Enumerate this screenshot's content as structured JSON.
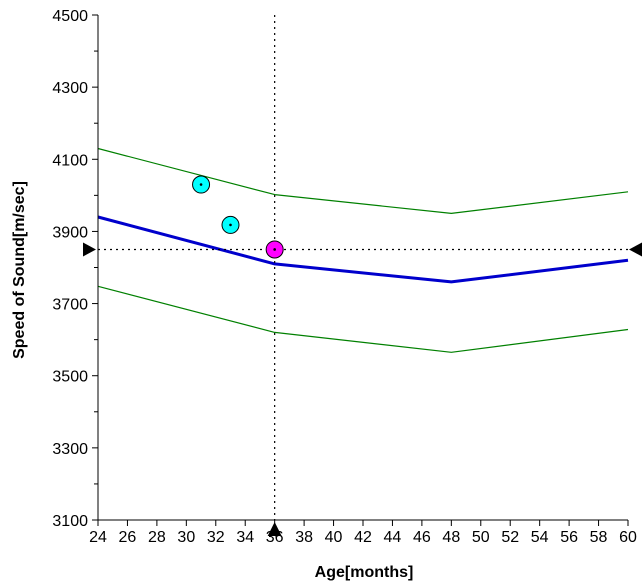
{
  "chart_data": {
    "type": "line",
    "xlabel": "Age[months]",
    "ylabel": "Speed of Sound[m/sec]",
    "xlim": [
      24,
      60
    ],
    "ylim": [
      3100,
      4500
    ],
    "x_ticks": [
      24,
      26,
      28,
      30,
      32,
      34,
      36,
      38,
      40,
      42,
      44,
      46,
      48,
      50,
      52,
      54,
      56,
      58,
      60
    ],
    "y_ticks": [
      3100,
      3300,
      3500,
      3700,
      3900,
      4100,
      4300,
      4500
    ],
    "grid": false,
    "legend": "none",
    "series": [
      {
        "role": "upper",
        "color": "#008000",
        "points": [
          [
            24,
            4130
          ],
          [
            36,
            4002
          ],
          [
            48,
            3950
          ],
          [
            60,
            4010
          ]
        ]
      },
      {
        "role": "mean",
        "color": "#0000cc",
        "points": [
          [
            24,
            3940
          ],
          [
            36,
            3810
          ],
          [
            48,
            3760
          ],
          [
            60,
            3820
          ]
        ]
      },
      {
        "role": "lower",
        "color": "#008000",
        "points": [
          [
            24,
            3748
          ],
          [
            36,
            3620
          ],
          [
            48,
            3565
          ],
          [
            60,
            3628
          ]
        ]
      }
    ],
    "measurements": [
      {
        "x": 31,
        "y": 4030,
        "color": "#00ffff"
      },
      {
        "x": 33,
        "y": 3918,
        "color": "#00ffff"
      },
      {
        "x": 36,
        "y": 3850,
        "color": "#ff00ff"
      }
    ],
    "crosshair": {
      "x": 36,
      "y": 3850
    }
  }
}
